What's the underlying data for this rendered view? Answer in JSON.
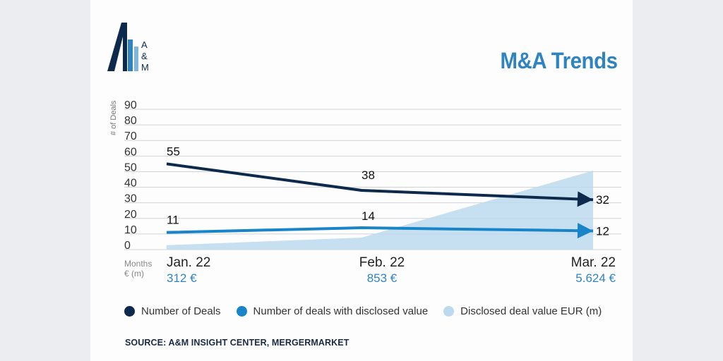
{
  "header": {
    "title": "M&A Trends",
    "logo_text": "A&M"
  },
  "colors": {
    "deals": "#0d2a4c",
    "disclosed_deals": "#1a84c8",
    "disclosed_value": "#bcd9ee",
    "accent": "#2f84c0"
  },
  "chart_data": {
    "type": "line",
    "ylabel": "# of Deals",
    "ylim": [
      0,
      90
    ],
    "yticks": [
      "0",
      "10",
      "20",
      "30",
      "40",
      "50",
      "60",
      "70",
      "80",
      "90"
    ],
    "xlabel": "Months",
    "x2label": "€ (m)",
    "categories": [
      "Jan. 22",
      "Feb. 22",
      "Mar. 22"
    ],
    "value_labels": [
      "312 €",
      "853 €",
      "5.624 €"
    ],
    "series": [
      {
        "name": "Number of Deals",
        "values": [
          55,
          38,
          32
        ],
        "labels": [
          "55",
          "38",
          "32"
        ]
      },
      {
        "name": "Number of deals with disclosed value",
        "values": [
          11,
          14,
          12
        ],
        "labels": [
          "11",
          "14",
          "12"
        ]
      },
      {
        "name": "Disclosed deal value EUR (m)",
        "values": [
          312,
          853,
          5624
        ]
      }
    ],
    "grid": true,
    "legend": "bottom"
  },
  "legend": {
    "items": [
      {
        "label": "Number of Deals",
        "color": "#0d2a4c"
      },
      {
        "label": "Number of deals with disclosed value",
        "color": "#1a84c8"
      },
      {
        "label": "Disclosed deal value EUR (m)",
        "color": "#bcd9ee"
      }
    ]
  },
  "source": "SOURCE: A&M INSIGHT CENTER, MERGERMARKET"
}
